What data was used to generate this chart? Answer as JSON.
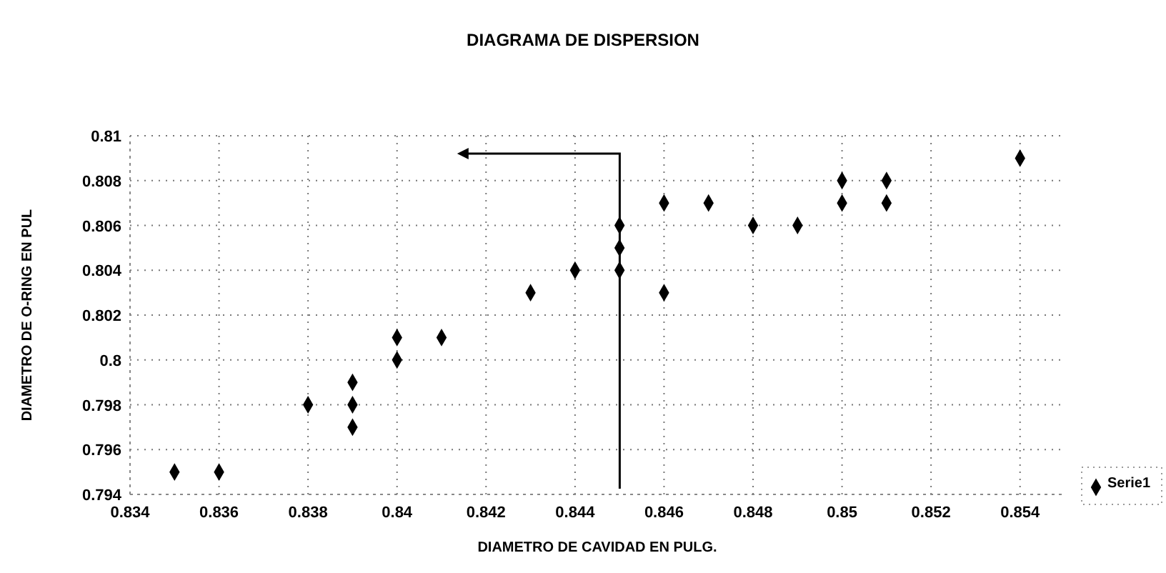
{
  "chart_data": {
    "type": "scatter",
    "title": "DIAGRAMA DE DISPERSION",
    "xlabel": "DIAMETRO DE CAVIDAD EN PULG.",
    "ylabel": "DIAMETRO DE O-RING EN PUL",
    "x": [
      0.835,
      0.836,
      0.838,
      0.839,
      0.839,
      0.839,
      0.84,
      0.84,
      0.841,
      0.843,
      0.844,
      0.845,
      0.845,
      0.845,
      0.846,
      0.846,
      0.847,
      0.848,
      0.849,
      0.85,
      0.85,
      0.851,
      0.851,
      0.854
    ],
    "series": [
      {
        "name": "Serie1",
        "color": "#000000",
        "values": [
          0.795,
          0.795,
          0.798,
          0.799,
          0.798,
          0.797,
          0.801,
          0.8,
          0.801,
          0.803,
          0.804,
          0.806,
          0.805,
          0.804,
          0.807,
          0.803,
          0.807,
          0.806,
          0.806,
          0.808,
          0.807,
          0.808,
          0.807,
          0.809
        ]
      }
    ],
    "xlim": [
      0.834,
      0.855
    ],
    "ylim": [
      0.794,
      0.81
    ],
    "xticks": [
      0.834,
      0.836,
      0.838,
      0.84,
      0.842,
      0.844,
      0.846,
      0.848,
      0.85,
      0.852,
      0.854
    ],
    "yticks": [
      0.794,
      0.796,
      0.798,
      0.8,
      0.802,
      0.804,
      0.806,
      0.808,
      0.81
    ],
    "grid": true,
    "legend": "right",
    "marker": "diamond"
  }
}
